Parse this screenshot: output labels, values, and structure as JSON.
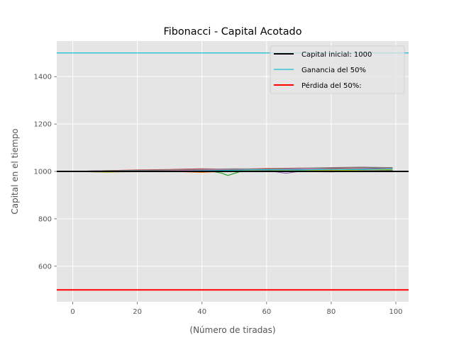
{
  "chart_data": {
    "type": "line",
    "title": "Fibonacci - Capital Acotado",
    "xlabel": "(Número de tiradas)",
    "ylabel": "Capital en el tiempo",
    "xlim": [
      -4.95,
      103.95
    ],
    "ylim": [
      450,
      1550
    ],
    "xticks": [
      0,
      20,
      40,
      60,
      80,
      100
    ],
    "yticks": [
      600,
      800,
      1000,
      1200,
      1400
    ],
    "grid": true,
    "legend_position": "top-right",
    "background_color": "#e5e5e5",
    "reference_lines": [
      {
        "name": "Capital inicial: 1000",
        "y": 1000,
        "color": "#000000",
        "width": 2
      },
      {
        "name": "Ganancia del 50%",
        "y": 1500,
        "color": "#17becf",
        "width": 1.2
      },
      {
        "name": "Pérdida del 50%:",
        "y": 500,
        "color": "#ff0000",
        "width": 2
      }
    ],
    "series": [
      {
        "color": "#1f77b4",
        "x": [
          0,
          10,
          20,
          30,
          40,
          50,
          60,
          70,
          80,
          90,
          99
        ],
        "y": [
          1000,
          1001,
          999,
          1003,
          1004,
          1002,
          1006,
          1009,
          1008,
          1011,
          1013
        ]
      },
      {
        "color": "#ff7f0e",
        "x": [
          0,
          10,
          20,
          30,
          40,
          50,
          60,
          70,
          80,
          90,
          99
        ],
        "y": [
          1000,
          998,
          1002,
          1001,
          996,
          1003,
          1005,
          1002,
          1006,
          1001,
          1004
        ]
      },
      {
        "color": "#2ca02c",
        "x": [
          0,
          10,
          20,
          30,
          40,
          44,
          46,
          48,
          52,
          60,
          70,
          80,
          90,
          99
        ],
        "y": [
          1000,
          1002,
          1004,
          1003,
          1001,
          998,
          993,
          983,
          1000,
          1004,
          1006,
          1003,
          1008,
          1005
        ]
      },
      {
        "color": "#d62728",
        "x": [
          0,
          10,
          20,
          30,
          40,
          50,
          60,
          70,
          80,
          90,
          99
        ],
        "y": [
          1000,
          1003,
          1006,
          1008,
          1011,
          1009,
          1012,
          1014,
          1013,
          1016,
          1014
        ]
      },
      {
        "color": "#9467bd",
        "x": [
          0,
          10,
          20,
          30,
          40,
          50,
          60,
          66,
          70,
          80,
          90,
          99
        ],
        "y": [
          1000,
          1001,
          1000,
          1002,
          1005,
          1003,
          1004,
          992,
          1000,
          998,
          1003,
          1002
        ]
      },
      {
        "color": "#8c564b",
        "x": [
          0,
          10,
          20,
          30,
          40,
          50,
          60,
          70,
          80,
          90,
          99
        ],
        "y": [
          1000,
          1002,
          1005,
          1007,
          1009,
          1008,
          1010,
          1012,
          1015,
          1017,
          1016
        ]
      },
      {
        "color": "#e377c2",
        "x": [
          0,
          10,
          20,
          30,
          40,
          50,
          60,
          70,
          80,
          90,
          99
        ],
        "y": [
          1000,
          999,
          1003,
          1004,
          1007,
          1006,
          1008,
          1011,
          1010,
          1009,
          1012
        ]
      },
      {
        "color": "#7f7f7f",
        "x": [
          0,
          10,
          20,
          30,
          40,
          50,
          60,
          70,
          80,
          90,
          99
        ],
        "y": [
          1000,
          1003,
          1004,
          1006,
          1009,
          1011,
          1010,
          1013,
          1016,
          1018,
          1015
        ]
      },
      {
        "color": "#bcbd22",
        "x": [
          0,
          10,
          20,
          30,
          40,
          50,
          60,
          70,
          80,
          90,
          99
        ],
        "y": [
          1000,
          997,
          999,
          1001,
          1000,
          1004,
          1002,
          1005,
          1003,
          1006,
          1008
        ]
      },
      {
        "color": "#17becf",
        "x": [
          0,
          10,
          20,
          30,
          40,
          50,
          60,
          70,
          80,
          90,
          99
        ],
        "y": [
          1000,
          1001,
          1002,
          1000,
          1003,
          1005,
          1007,
          1006,
          1009,
          1008,
          1011
        ]
      }
    ]
  }
}
